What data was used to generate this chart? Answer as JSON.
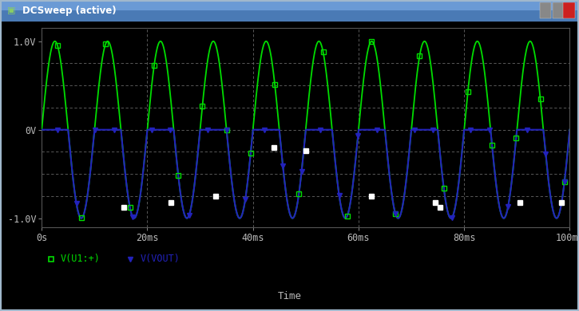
{
  "title_bar": "DCSweep (active)",
  "bg_color": "#000000",
  "fig_bg_color": "#c8d0d4",
  "xlabel": "Time",
  "xmin": 0,
  "xmax": 0.1,
  "ymin": -1.1,
  "ymax": 1.15,
  "xticks": [
    0,
    0.02,
    0.04,
    0.06,
    0.08,
    0.1
  ],
  "xtick_labels": [
    "0s",
    "20ms",
    "40ms",
    "60ms",
    "80ms",
    "100ms"
  ],
  "yticks": [
    -1.0,
    0.0,
    1.0
  ],
  "ytick_labels": [
    "-1.0V",
    "0V",
    "1.0V"
  ],
  "signal1_color": "#00dd00",
  "signal1_label": "V(U1:+)",
  "signal2_color": "#2222bb",
  "signal2_label": "V(VOUT)",
  "signal1_amplitude": 1.0,
  "signal1_frequency": 100,
  "n_points": 3000,
  "grid_color": "#666666",
  "tick_color": "#bbbbbb",
  "label_color": "#bbbbbb",
  "titlebar_bg": "#6a8ab0",
  "titlebar_text_color": "#ffffff",
  "border_color": "#a0b8c8"
}
